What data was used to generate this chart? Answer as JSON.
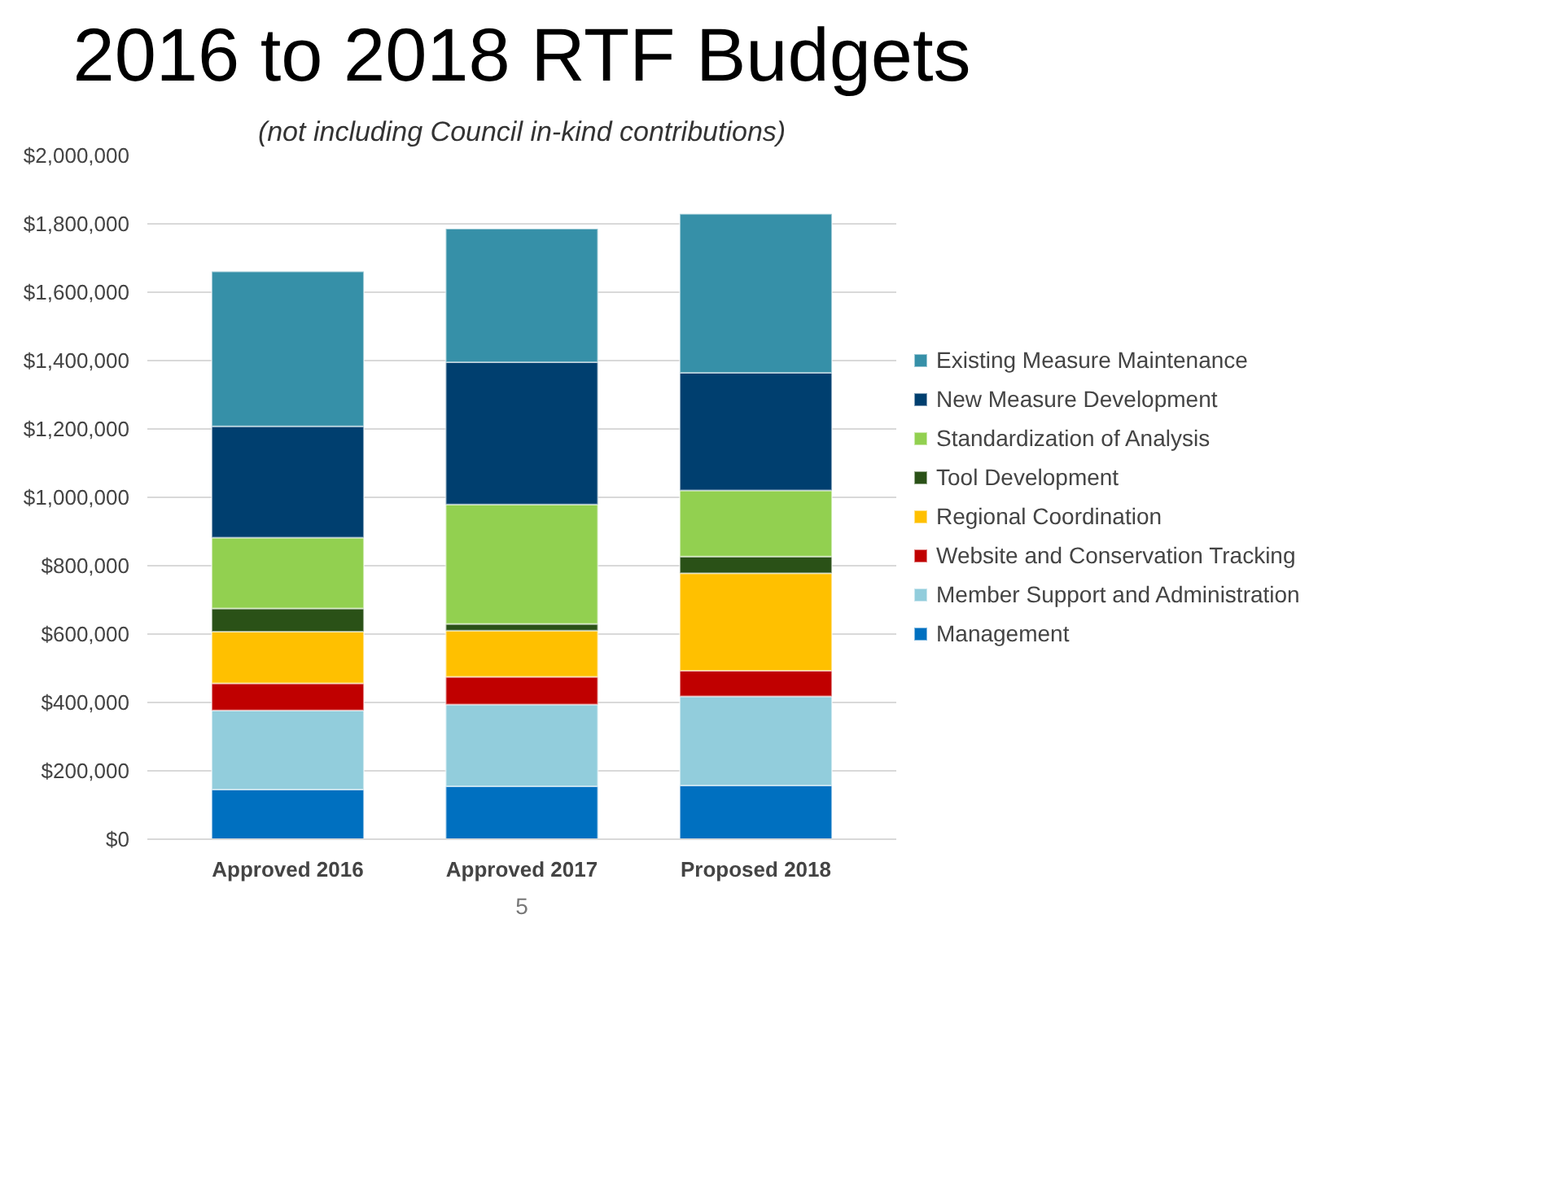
{
  "chart_data": {
    "type": "bar",
    "stacked": true,
    "title": "2016 to 2018 RTF Budgets",
    "subtitle": "(not including Council in-kind contributions)",
    "categories": [
      "Approved 2016",
      "Approved 2017",
      "Proposed 2018"
    ],
    "series": [
      {
        "name": "Management",
        "color": "#0070c0",
        "values": [
          145000,
          155000,
          157000
        ]
      },
      {
        "name": "Member Support and Administration",
        "color": "#92cddc",
        "values": [
          232000,
          239000,
          261000
        ]
      },
      {
        "name": "Website and Conservation Tracking",
        "color": "#c00000",
        "values": [
          79000,
          81000,
          75000
        ]
      },
      {
        "name": "Regional Coordination",
        "color": "#ffc000",
        "values": [
          151000,
          135000,
          285000
        ]
      },
      {
        "name": "Tool Development",
        "color": "#2a5117",
        "values": [
          68000,
          20000,
          49000
        ]
      },
      {
        "name": "Standardization of Analysis",
        "color": "#92d050",
        "values": [
          207000,
          349000,
          193000
        ]
      },
      {
        "name": "New Measure Development",
        "color": "#003f6f",
        "values": [
          326000,
          416000,
          344000
        ]
      },
      {
        "name": "Existing Measure Maintenance",
        "color": "#3690a8",
        "values": [
          453000,
          391000,
          465000
        ]
      }
    ],
    "ylim": [
      0,
      2000000
    ],
    "yticks": [
      {
        "value": 0,
        "label": "$0"
      },
      {
        "value": 200000,
        "label": "$200,000"
      },
      {
        "value": 400000,
        "label": "$400,000"
      },
      {
        "value": 600000,
        "label": "$600,000"
      },
      {
        "value": 800000,
        "label": "$800,000"
      },
      {
        "value": 1000000,
        "label": "$1,000,000"
      },
      {
        "value": 1200000,
        "label": "$1,200,000"
      },
      {
        "value": 1400000,
        "label": "$1,400,000"
      },
      {
        "value": 1600000,
        "label": "$1,600,000"
      },
      {
        "value": 1800000,
        "label": "$1,800,000"
      },
      {
        "value": 2000000,
        "label": "$2,000,000"
      }
    ],
    "grid": "y",
    "legend": "right",
    "annotations": [
      "5"
    ]
  }
}
